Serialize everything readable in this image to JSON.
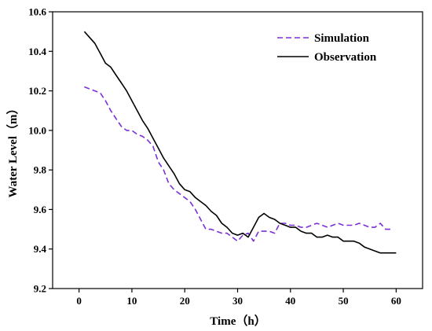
{
  "chart_data": {
    "type": "line",
    "xlabel": "Time（h）",
    "ylabel": "Water Level（m）",
    "xlim": [
      -5,
      65
    ],
    "ylim": [
      9.2,
      10.6
    ],
    "xticks": [
      0,
      10,
      20,
      30,
      40,
      50,
      60
    ],
    "yticks": [
      9.2,
      9.4,
      9.6,
      9.8,
      10.0,
      10.2,
      10.4,
      10.6
    ],
    "xtick_labels": [
      "0",
      "10",
      "20",
      "30",
      "40",
      "50",
      "60"
    ],
    "ytick_labels": [
      "9.2",
      "9.4",
      "9.6",
      "9.8",
      "10.0",
      "10.2",
      "10.4",
      "10.6"
    ],
    "grid": false,
    "legend_position": "top-right",
    "series": [
      {
        "name": "Simulation",
        "color": "#7b2fd6",
        "style": "dashed",
        "x": [
          1,
          2,
          3,
          4,
          5,
          6,
          7,
          8,
          9,
          10,
          11,
          12,
          13,
          14,
          15,
          16,
          17,
          18,
          19,
          20,
          21,
          22,
          23,
          24,
          25,
          26,
          27,
          28,
          29,
          30,
          31,
          32,
          33,
          34,
          35,
          36,
          37,
          38,
          39,
          40,
          41,
          42,
          43,
          44,
          45,
          46,
          47,
          48,
          49,
          50,
          51,
          52,
          53,
          54,
          55,
          56,
          57,
          58,
          59
        ],
        "y": [
          10.22,
          10.21,
          10.2,
          10.19,
          10.15,
          10.1,
          10.06,
          10.02,
          10.0,
          10.0,
          9.98,
          9.97,
          9.95,
          9.92,
          9.84,
          9.8,
          9.73,
          9.7,
          9.68,
          9.66,
          9.64,
          9.6,
          9.55,
          9.5,
          9.5,
          9.49,
          9.48,
          9.48,
          9.46,
          9.44,
          9.47,
          9.48,
          9.44,
          9.49,
          9.49,
          9.49,
          9.48,
          9.53,
          9.53,
          9.52,
          9.52,
          9.51,
          9.51,
          9.52,
          9.53,
          9.52,
          9.51,
          9.52,
          9.53,
          9.52,
          9.52,
          9.52,
          9.53,
          9.52,
          9.51,
          9.51,
          9.53,
          9.5,
          9.5
        ]
      },
      {
        "name": "Observation",
        "color": "#000000",
        "style": "solid",
        "x": [
          1,
          2,
          3,
          4,
          5,
          6,
          7,
          8,
          9,
          10,
          11,
          12,
          13,
          14,
          15,
          16,
          17,
          18,
          19,
          20,
          21,
          22,
          23,
          24,
          25,
          26,
          27,
          28,
          29,
          30,
          31,
          32,
          33,
          34,
          35,
          36,
          37,
          38,
          39,
          40,
          41,
          42,
          43,
          44,
          45,
          46,
          47,
          48,
          49,
          50,
          51,
          52,
          53,
          54,
          55,
          56,
          57,
          58,
          59,
          60
        ],
        "y": [
          10.5,
          10.47,
          10.44,
          10.39,
          10.34,
          10.32,
          10.28,
          10.24,
          10.2,
          10.15,
          10.1,
          10.05,
          10.01,
          9.96,
          9.91,
          9.86,
          9.82,
          9.78,
          9.73,
          9.7,
          9.69,
          9.66,
          9.64,
          9.62,
          9.59,
          9.57,
          9.53,
          9.51,
          9.48,
          9.47,
          9.48,
          9.46,
          9.51,
          9.56,
          9.58,
          9.56,
          9.55,
          9.53,
          9.52,
          9.51,
          9.51,
          9.49,
          9.48,
          9.48,
          9.46,
          9.46,
          9.47,
          9.46,
          9.46,
          9.44,
          9.44,
          9.44,
          9.43,
          9.41,
          9.4,
          9.39,
          9.38,
          9.38,
          9.38,
          9.38
        ]
      }
    ]
  }
}
